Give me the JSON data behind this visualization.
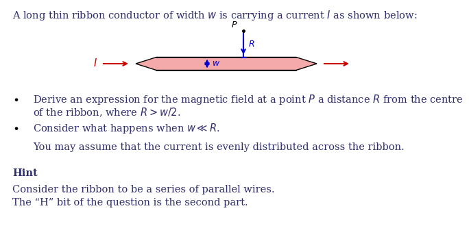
{
  "bg_color": "#ffffff",
  "text_color": "#2e2e6e",
  "red_color": "#cc0000",
  "blue_color": "#0000cc",
  "ribbon_fill": "#f4aaaa",
  "ribbon_edge": "#000000",
  "title_text": "A long thin ribbon conductor of width $w$ is carrying a current $I$ as shown below:",
  "bullet1_a": "Derive an expression for the magnetic field at a point $P$ a distance $R$ from the centre",
  "bullet1_b": "of the ribbon, where $R > w/2$.",
  "bullet2": "Consider what happens when $w \\ll R$.",
  "para1": "You may assume that the current is evenly distributed across the ribbon.",
  "hint_label": "Hint",
  "hint1": "Consider the ribbon to be a series of parallel wires.",
  "hint2": "The “H” bit of the question is the second part.",
  "body_fontsize": 10.5,
  "hint_fontsize": 10.5,
  "fig_width": 6.84,
  "fig_height": 3.68,
  "dpi": 100
}
